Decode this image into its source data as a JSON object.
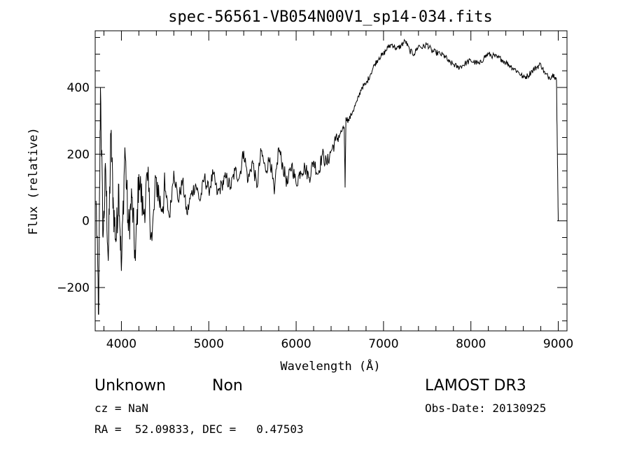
{
  "chart_data": {
    "type": "line",
    "title": "spec-56561-VB054N00V1_sp14-034.fits",
    "xlabel": "Wavelength (Å)",
    "ylabel": "Flux (relative)",
    "xlim": [
      3700,
      9100
    ],
    "ylim": [
      -330,
      570
    ],
    "x_ticks": [
      4000,
      5000,
      6000,
      7000,
      8000,
      9000
    ],
    "x_tick_labels": [
      "4000",
      "5000",
      "6000",
      "7000",
      "8000",
      "9000"
    ],
    "y_ticks": [
      -200,
      0,
      200,
      400
    ],
    "y_tick_labels": [
      "−200",
      "0",
      "200",
      "400"
    ],
    "grid": false,
    "series": [
      {
        "name": "flux",
        "color": "#000000",
        "x": [
          3710,
          3740,
          3760,
          3790,
          3820,
          3850,
          3880,
          3910,
          3940,
          3970,
          4000,
          4040,
          4080,
          4120,
          4160,
          4200,
          4250,
          4300,
          4350,
          4400,
          4450,
          4500,
          4550,
          4600,
          4650,
          4700,
          4750,
          4800,
          4850,
          4900,
          4950,
          5000,
          5050,
          5100,
          5150,
          5200,
          5250,
          5300,
          5350,
          5400,
          5450,
          5500,
          5550,
          5600,
          5650,
          5700,
          5750,
          5800,
          5850,
          5900,
          5950,
          6000,
          6050,
          6100,
          6150,
          6200,
          6250,
          6300,
          6350,
          6400,
          6450,
          6500,
          6550,
          6560,
          6570,
          6600,
          6650,
          6700,
          6750,
          6800,
          6850,
          6900,
          6950,
          7000,
          7050,
          7100,
          7150,
          7200,
          7250,
          7300,
          7350,
          7400,
          7450,
          7500,
          7550,
          7600,
          7650,
          7700,
          7750,
          7800,
          7850,
          7900,
          7950,
          8000,
          8050,
          8100,
          8150,
          8200,
          8250,
          8300,
          8350,
          8400,
          8450,
          8500,
          8550,
          8600,
          8650,
          8700,
          8750,
          8800,
          8850,
          8900,
          8950,
          8980,
          8990,
          9000
        ],
        "y": [
          60,
          -280,
          400,
          -50,
          150,
          -120,
          260,
          30,
          -60,
          110,
          -150,
          220,
          -30,
          70,
          -120,
          140,
          20,
          120,
          -60,
          130,
          40,
          90,
          10,
          150,
          60,
          120,
          20,
          80,
          110,
          60,
          130,
          90,
          140,
          80,
          110,
          130,
          100,
          150,
          130,
          210,
          120,
          180,
          100,
          210,
          150,
          190,
          80,
          220,
          160,
          110,
          170,
          110,
          150,
          160,
          130,
          180,
          140,
          200,
          170,
          210,
          240,
          260,
          280,
          100,
          310,
          300,
          330,
          360,
          400,
          410,
          440,
          470,
          490,
          500,
          520,
          530,
          515,
          525,
          540,
          510,
          500,
          525,
          520,
          530,
          510,
          505,
          500,
          495,
          475,
          470,
          460,
          465,
          475,
          480,
          475,
          470,
          490,
          500,
          495,
          490,
          485,
          475,
          465,
          455,
          445,
          430,
          435,
          450,
          460,
          470,
          440,
          430,
          440,
          420,
          200,
          0
        ]
      }
    ]
  },
  "footer": {
    "object_class": "Unknown",
    "object_subclass": "Non",
    "survey": "LAMOST DR3",
    "cz": "cz = NaN",
    "obs_date": "Obs-Date: 20130925",
    "coords": "RA =  52.09833, DEC =   0.47503"
  }
}
